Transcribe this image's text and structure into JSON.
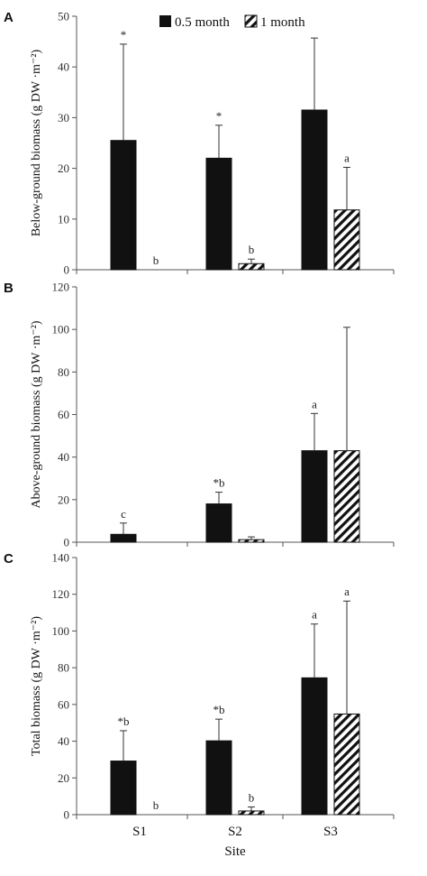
{
  "legend": {
    "series1": "0.5 month",
    "series2": "1 month"
  },
  "xlabel": "Site",
  "chart_data": [
    {
      "type": "bar",
      "panel": "A",
      "ylabel": "Below-ground biomass (g DW ·m⁻²)",
      "ylim": [
        0,
        50
      ],
      "yticks": [
        0,
        10,
        20,
        30,
        40,
        50
      ],
      "categories": [
        "S1",
        "S2",
        "S3"
      ],
      "series": [
        {
          "name": "0.5 month",
          "values": [
            25.5,
            22,
            31.5
          ],
          "errors": [
            19,
            6.5,
            14.2
          ],
          "labels": [
            "*",
            "*",
            ""
          ]
        },
        {
          "name": "1 month",
          "values": [
            0,
            1.2,
            11.8
          ],
          "errors": [
            0,
            0.9,
            8.4
          ],
          "labels": [
            "b",
            "b",
            "a"
          ]
        }
      ]
    },
    {
      "type": "bar",
      "panel": "B",
      "ylabel": "Above-ground biomass (g DW ·m⁻²)",
      "ylim": [
        0,
        120
      ],
      "yticks": [
        0,
        20,
        40,
        60,
        80,
        100,
        120
      ],
      "categories": [
        "S1",
        "S2",
        "S3"
      ],
      "series": [
        {
          "name": "0.5 month",
          "values": [
            3.7,
            18,
            43
          ],
          "errors": [
            5.3,
            5.5,
            17.5
          ],
          "labels": [
            "c",
            "*b",
            "a"
          ]
        },
        {
          "name": "1 month",
          "values": [
            0,
            1.2,
            43
          ],
          "errors": [
            0,
            1.3,
            58
          ],
          "labels": [
            "",
            "",
            ""
          ]
        }
      ]
    },
    {
      "type": "bar",
      "panel": "C",
      "ylabel": "Total biomass (g DW ·m⁻²)",
      "ylim": [
        0,
        140
      ],
      "yticks": [
        0,
        20,
        40,
        60,
        80,
        100,
        120,
        140
      ],
      "categories": [
        "S1",
        "S2",
        "S3"
      ],
      "series": [
        {
          "name": "0.5 month",
          "values": [
            29.2,
            40.2,
            74.5
          ],
          "errors": [
            16.5,
            11.8,
            29.3
          ],
          "labels": [
            "*b",
            "*b",
            "a"
          ]
        },
        {
          "name": "1 month",
          "values": [
            0,
            2,
            54.8
          ],
          "errors": [
            0,
            2.2,
            61.5
          ],
          "labels": [
            "b",
            "b",
            "a"
          ]
        }
      ]
    }
  ]
}
